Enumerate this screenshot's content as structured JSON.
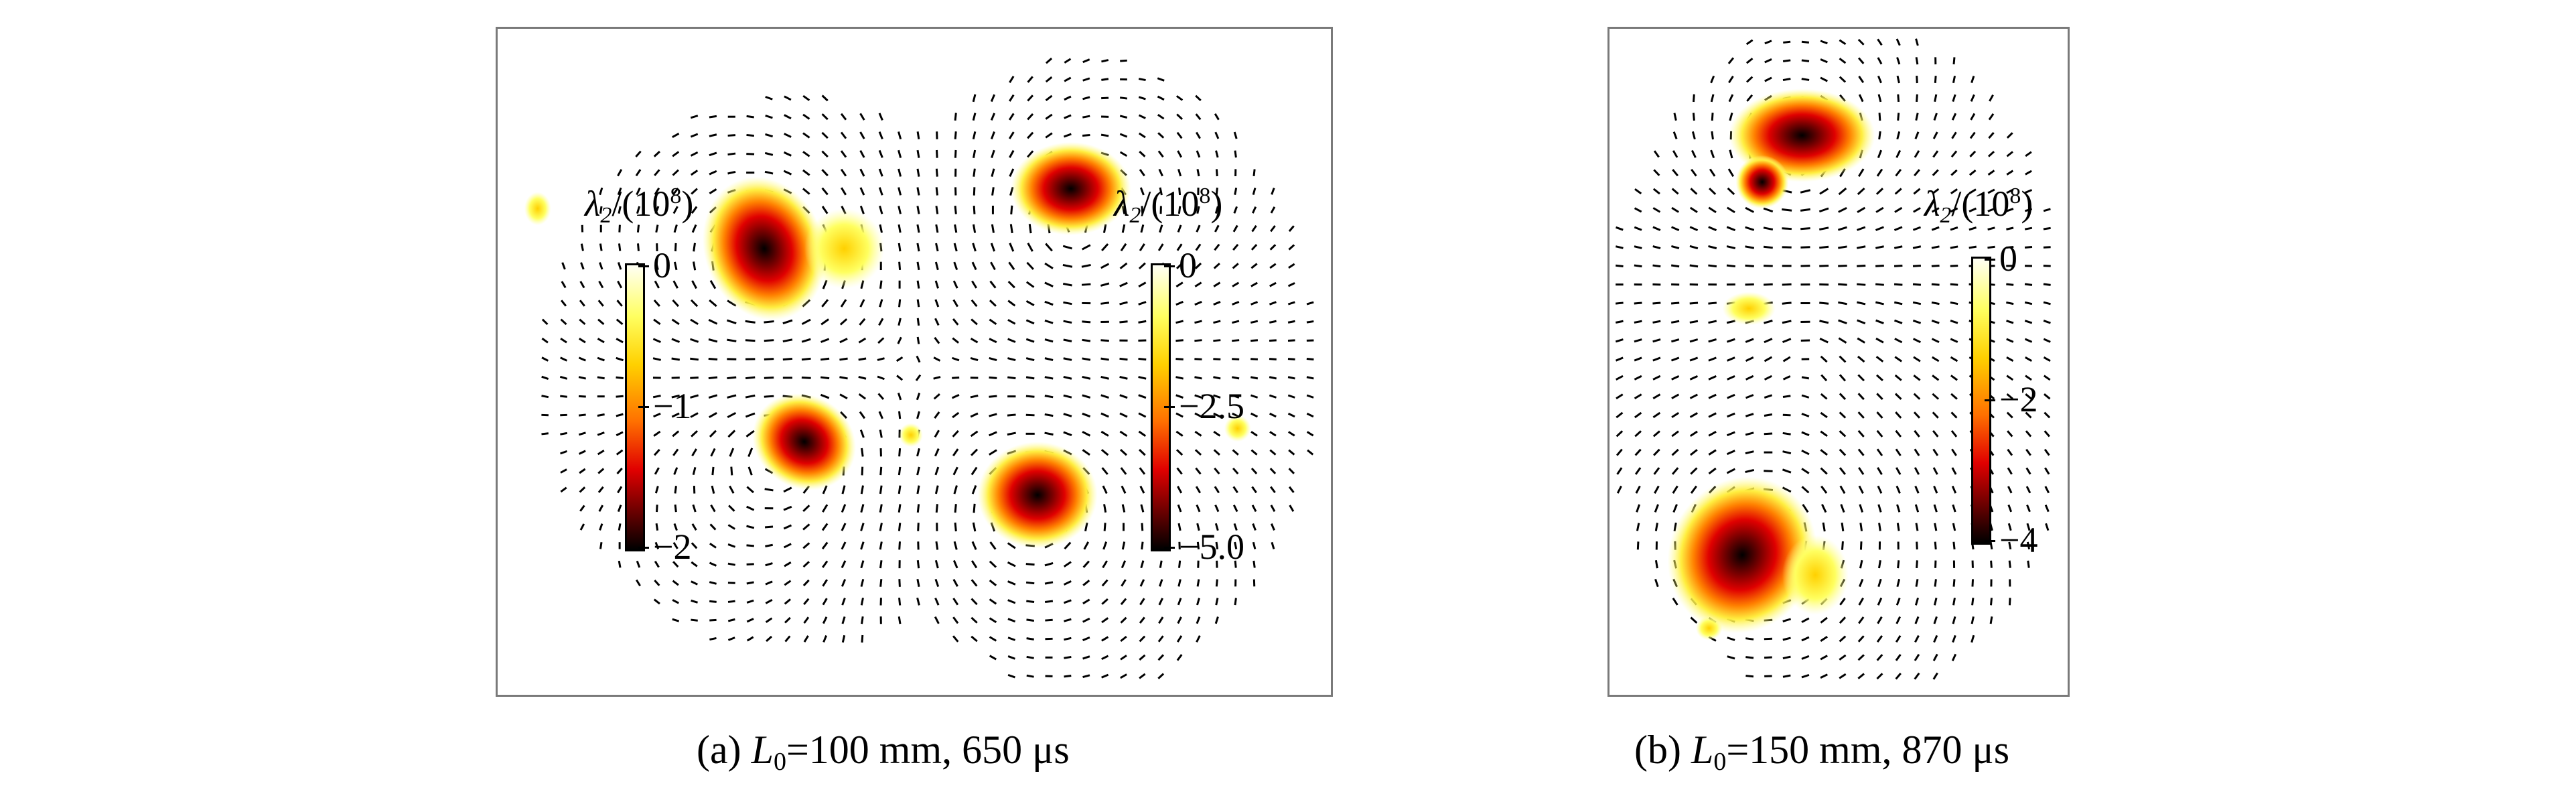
{
  "figure": {
    "panel_a": {
      "caption_prefix": "(a)",
      "caption_var": "L",
      "caption_sub": "0",
      "caption_rest": "=100 mm, 650 μs",
      "colorbars": [
        {
          "label_sym": "λ",
          "label_sub": "2",
          "label_paren": "/(10",
          "label_exp": "8",
          "label_close": ")",
          "ticks": [
            "0",
            "−1",
            "−2"
          ]
        },
        {
          "label_sym": "λ",
          "label_sub": "2",
          "label_paren": "/(10",
          "label_exp": "8",
          "label_close": ")",
          "ticks": [
            "0",
            "−2.5",
            "−5.0"
          ]
        }
      ]
    },
    "panel_b": {
      "caption_prefix": "(b)",
      "caption_var": "L",
      "caption_sub": "0",
      "caption_rest": "=150 mm, 870 μs",
      "colorbars": [
        {
          "label_sym": "λ",
          "label_sub": "2",
          "label_paren": "/(10",
          "label_exp": "8",
          "label_close": ")",
          "ticks": [
            "0",
            "−2",
            "−4"
          ]
        }
      ]
    },
    "colors": {
      "frame": "#7a7a7a",
      "arrows": "#000000",
      "hot_low": "#ffff60",
      "hot_mid": "#e00000",
      "hot_high": "#000000"
    }
  }
}
